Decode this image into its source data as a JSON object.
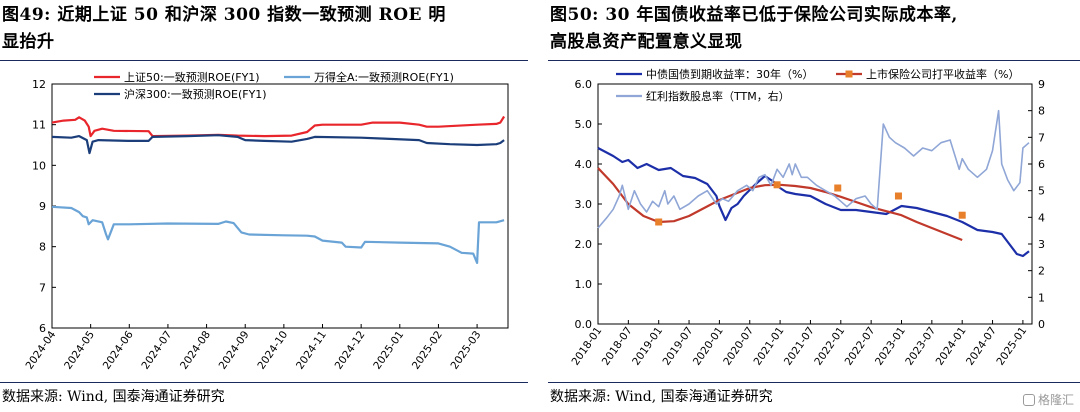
{
  "left": {
    "title_line1": "图49:  近期上证 50 和沪深 300 指数一致预测 ROE 明",
    "title_line2": "显抬升",
    "source": "数据来源:  Wind,  国泰海通证券研究"
  },
  "right": {
    "title_line1": "图50:  30 年国债收益率已低于保险公司实际成本率,",
    "title_line2": "高股息资产配置意义显现",
    "source": "数据来源:  Wind,  国泰海通证券研究"
  },
  "watermark": "格隆汇",
  "chart_data": [
    {
      "type": "line",
      "title": "",
      "xlabel": "",
      "ylabel": "",
      "ylim": [
        6,
        12
      ],
      "yticks": [
        "6",
        "7",
        "8",
        "9",
        "10",
        "11",
        "12"
      ],
      "x_tick_labels": [
        "2024-04",
        "2024-05",
        "2024-06",
        "2024-07",
        "2024-08",
        "2024-09",
        "2024-10",
        "2024-11",
        "2024-12",
        "2025-01",
        "2025-02",
        "2025-03"
      ],
      "x_range": [
        0,
        11.8
      ],
      "grid": false,
      "legend": "top",
      "series": [
        {
          "name": "上证50:一致预测ROE(FY1)",
          "color": "#e8262b",
          "points": [
            [
              0,
              11.05
            ],
            [
              0.3,
              11.1
            ],
            [
              0.6,
              11.12
            ],
            [
              0.7,
              11.18
            ],
            [
              0.85,
              11.1
            ],
            [
              0.95,
              10.95
            ],
            [
              1.0,
              10.72
            ],
            [
              1.1,
              10.85
            ],
            [
              1.3,
              10.9
            ],
            [
              1.6,
              10.85
            ],
            [
              2.5,
              10.84
            ],
            [
              2.6,
              10.72
            ],
            [
              3.5,
              10.73
            ],
            [
              4.3,
              10.75
            ],
            [
              4.8,
              10.73
            ],
            [
              5.5,
              10.72
            ],
            [
              6.2,
              10.73
            ],
            [
              6.6,
              10.82
            ],
            [
              6.8,
              10.98
            ],
            [
              7.0,
              11.0
            ],
            [
              8.0,
              11.0
            ],
            [
              8.3,
              11.05
            ],
            [
              9.0,
              11.05
            ],
            [
              9.5,
              11.0
            ],
            [
              9.7,
              10.95
            ],
            [
              10.0,
              10.95
            ],
            [
              11.0,
              11.0
            ],
            [
              11.5,
              11.02
            ],
            [
              11.6,
              11.05
            ],
            [
              11.7,
              11.2
            ]
          ]
        },
        {
          "name": "万得全A:一致预测ROE(FY1)",
          "color": "#6aa3d6",
          "points": [
            [
              0,
              8.98
            ],
            [
              0.5,
              8.95
            ],
            [
              0.7,
              8.85
            ],
            [
              0.8,
              8.75
            ],
            [
              0.9,
              8.72
            ],
            [
              0.95,
              8.55
            ],
            [
              1.05,
              8.65
            ],
            [
              1.3,
              8.6
            ],
            [
              1.4,
              8.3
            ],
            [
              1.45,
              8.18
            ],
            [
              1.6,
              8.55
            ],
            [
              2.0,
              8.55
            ],
            [
              3.0,
              8.57
            ],
            [
              4.3,
              8.56
            ],
            [
              4.5,
              8.62
            ],
            [
              4.7,
              8.58
            ],
            [
              4.9,
              8.35
            ],
            [
              5.1,
              8.3
            ],
            [
              6.0,
              8.28
            ],
            [
              6.6,
              8.27
            ],
            [
              6.8,
              8.25
            ],
            [
              7.0,
              8.15
            ],
            [
              7.5,
              8.1
            ],
            [
              7.6,
              8.0
            ],
            [
              8.0,
              7.98
            ],
            [
              8.1,
              8.12
            ],
            [
              9.0,
              8.1
            ],
            [
              10.0,
              8.08
            ],
            [
              10.3,
              8.0
            ],
            [
              10.6,
              7.85
            ],
            [
              10.9,
              7.83
            ],
            [
              11.0,
              7.6
            ],
            [
              11.05,
              8.6
            ],
            [
              11.5,
              8.6
            ],
            [
              11.7,
              8.65
            ]
          ]
        },
        {
          "name": "沪深300:一致预测ROE(FY1)",
          "color": "#1b3e7a",
          "points": [
            [
              0,
              10.7
            ],
            [
              0.5,
              10.68
            ],
            [
              0.7,
              10.72
            ],
            [
              0.9,
              10.62
            ],
            [
              0.97,
              10.3
            ],
            [
              1.05,
              10.58
            ],
            [
              1.2,
              10.62
            ],
            [
              2.0,
              10.6
            ],
            [
              2.5,
              10.6
            ],
            [
              2.6,
              10.7
            ],
            [
              3.5,
              10.72
            ],
            [
              4.3,
              10.74
            ],
            [
              4.8,
              10.7
            ],
            [
              5.0,
              10.62
            ],
            [
              5.5,
              10.6
            ],
            [
              6.2,
              10.58
            ],
            [
              6.6,
              10.65
            ],
            [
              6.8,
              10.7
            ],
            [
              8.0,
              10.68
            ],
            [
              8.5,
              10.66
            ],
            [
              9.5,
              10.62
            ],
            [
              9.7,
              10.55
            ],
            [
              10.3,
              10.52
            ],
            [
              11.0,
              10.5
            ],
            [
              11.5,
              10.52
            ],
            [
              11.6,
              10.55
            ],
            [
              11.7,
              10.62
            ]
          ]
        }
      ]
    },
    {
      "type": "line",
      "title": "",
      "xlabel": "",
      "ylabel": "",
      "ylim": [
        0,
        6
      ],
      "yticks": [
        "0.0",
        "1.0",
        "2.0",
        "3.0",
        "4.0",
        "5.0",
        "6.0"
      ],
      "y2lim": [
        0,
        9
      ],
      "y2ticks": [
        "0",
        "1",
        "2",
        "3",
        "4",
        "5",
        "6",
        "7",
        "8",
        "9"
      ],
      "x_tick_labels": [
        "2018-01",
        "2018-07",
        "2019-01",
        "2019-07",
        "2020-01",
        "2020-07",
        "2021-01",
        "2021-07",
        "2022-01",
        "2022-07",
        "2023-01",
        "2023-07",
        "2024-01",
        "2024-07",
        "2025-01"
      ],
      "x_range": [
        0,
        14.3
      ],
      "grid": false,
      "legend": "top",
      "series": [
        {
          "name": "中债国债到期收益率：30年（%）",
          "color": "#1c2fa8",
          "axis": "left",
          "points": [
            [
              0,
              4.4
            ],
            [
              0.5,
              4.2
            ],
            [
              0.8,
              4.05
            ],
            [
              1.0,
              4.1
            ],
            [
              1.3,
              3.9
            ],
            [
              1.6,
              4.0
            ],
            [
              2.0,
              3.85
            ],
            [
              2.4,
              3.9
            ],
            [
              2.8,
              3.7
            ],
            [
              3.2,
              3.65
            ],
            [
              3.6,
              3.5
            ],
            [
              3.9,
              3.2
            ],
            [
              4.0,
              2.95
            ],
            [
              4.2,
              2.6
            ],
            [
              4.4,
              2.9
            ],
            [
              4.6,
              3.0
            ],
            [
              4.8,
              3.2
            ],
            [
              5.2,
              3.5
            ],
            [
              5.5,
              3.7
            ],
            [
              5.8,
              3.55
            ],
            [
              6.0,
              3.4
            ],
            [
              6.2,
              3.3
            ],
            [
              6.5,
              3.25
            ],
            [
              7.0,
              3.2
            ],
            [
              7.5,
              3.0
            ],
            [
              8.0,
              2.85
            ],
            [
              8.5,
              2.85
            ],
            [
              9.0,
              2.8
            ],
            [
              9.5,
              2.75
            ],
            [
              10.0,
              2.95
            ],
            [
              10.5,
              2.9
            ],
            [
              11.0,
              2.8
            ],
            [
              11.5,
              2.7
            ],
            [
              12.0,
              2.55
            ],
            [
              12.5,
              2.35
            ],
            [
              13.0,
              2.3
            ],
            [
              13.3,
              2.25
            ],
            [
              13.6,
              1.95
            ],
            [
              13.8,
              1.75
            ],
            [
              14.0,
              1.7
            ],
            [
              14.2,
              1.82
            ]
          ]
        },
        {
          "name": "上市保险公司打平收益率（%）",
          "color": "#c0392b",
          "marker": "#e87f2a",
          "axis": "left",
          "points": [
            [
              0,
              3.9
            ],
            [
              0.5,
              3.5
            ],
            [
              1.0,
              3.0
            ],
            [
              1.5,
              2.7
            ],
            [
              2.0,
              2.55
            ],
            [
              2.5,
              2.57
            ],
            [
              3.0,
              2.7
            ],
            [
              3.5,
              2.9
            ],
            [
              4.0,
              3.1
            ],
            [
              4.5,
              3.25
            ],
            [
              5.0,
              3.4
            ],
            [
              5.5,
              3.47
            ],
            [
              6.0,
              3.48
            ],
            [
              6.5,
              3.45
            ],
            [
              7.0,
              3.4
            ],
            [
              7.5,
              3.3
            ],
            [
              8.0,
              3.18
            ],
            [
              8.5,
              3.05
            ],
            [
              9.0,
              2.92
            ],
            [
              9.5,
              2.82
            ],
            [
              10.0,
              2.72
            ],
            [
              10.5,
              2.55
            ],
            [
              11.0,
              2.4
            ],
            [
              11.5,
              2.25
            ],
            [
              12.0,
              2.1
            ]
          ],
          "markers": [
            [
              2.0,
              2.55
            ],
            [
              5.9,
              3.48
            ],
            [
              7.9,
              3.4
            ],
            [
              9.9,
              3.2
            ],
            [
              12.0,
              2.72
            ]
          ]
        },
        {
          "name": "红利指数股息率（TTM，右）",
          "color": "#8fa6d6",
          "axis": "right",
          "points": [
            [
              0,
              3.6
            ],
            [
              0.3,
              4.0
            ],
            [
              0.5,
              4.3
            ],
            [
              0.7,
              4.8
            ],
            [
              0.8,
              5.2
            ],
            [
              1.0,
              4.3
            ],
            [
              1.2,
              5.0
            ],
            [
              1.4,
              4.5
            ],
            [
              1.6,
              4.2
            ],
            [
              1.8,
              4.6
            ],
            [
              2.0,
              4.4
            ],
            [
              2.2,
              5.0
            ],
            [
              2.3,
              4.5
            ],
            [
              2.5,
              4.8
            ],
            [
              2.7,
              4.3
            ],
            [
              3.0,
              4.5
            ],
            [
              3.3,
              4.8
            ],
            [
              3.6,
              5.0
            ],
            [
              3.9,
              4.5
            ],
            [
              4.1,
              4.7
            ],
            [
              4.3,
              4.6
            ],
            [
              4.6,
              5.0
            ],
            [
              4.9,
              5.2
            ],
            [
              5.1,
              5.0
            ],
            [
              5.3,
              5.5
            ],
            [
              5.5,
              5.6
            ],
            [
              5.7,
              5.2
            ],
            [
              5.9,
              5.8
            ],
            [
              6.1,
              5.5
            ],
            [
              6.3,
              6.0
            ],
            [
              6.4,
              5.6
            ],
            [
              6.5,
              6.0
            ],
            [
              6.7,
              5.5
            ],
            [
              6.9,
              5.5
            ],
            [
              7.2,
              5.2
            ],
            [
              7.5,
              5.0
            ],
            [
              7.8,
              4.8
            ],
            [
              8.0,
              4.6
            ],
            [
              8.2,
              4.4
            ],
            [
              8.5,
              4.7
            ],
            [
              8.8,
              4.8
            ],
            [
              9.0,
              4.5
            ],
            [
              9.2,
              4.3
            ],
            [
              9.4,
              7.5
            ],
            [
              9.6,
              7.0
            ],
            [
              9.8,
              6.8
            ],
            [
              10.1,
              6.6
            ],
            [
              10.4,
              6.3
            ],
            [
              10.7,
              6.6
            ],
            [
              11.0,
              6.5
            ],
            [
              11.3,
              6.8
            ],
            [
              11.6,
              6.9
            ],
            [
              11.9,
              5.8
            ],
            [
              12.0,
              6.2
            ],
            [
              12.2,
              5.8
            ],
            [
              12.5,
              5.5
            ],
            [
              12.8,
              5.8
            ],
            [
              13.0,
              6.5
            ],
            [
              13.2,
              8.0
            ],
            [
              13.3,
              6.0
            ],
            [
              13.5,
              5.4
            ],
            [
              13.7,
              5.0
            ],
            [
              13.9,
              5.3
            ],
            [
              14.0,
              6.6
            ],
            [
              14.2,
              6.8
            ]
          ]
        }
      ]
    }
  ]
}
